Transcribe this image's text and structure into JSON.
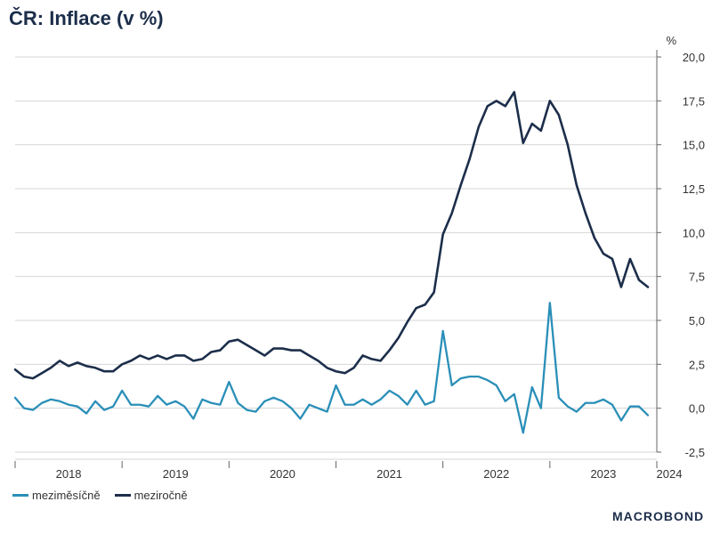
{
  "chart_data": {
    "type": "line",
    "title": "ČR: Inflace (v %)",
    "ylabel": "%",
    "ylim": [
      -2.5,
      20.0
    ],
    "yticks": [
      -2.5,
      0.0,
      2.5,
      5.0,
      7.5,
      10.0,
      12.5,
      15.0,
      17.5,
      20.0
    ],
    "ytick_labels": [
      "-2,5",
      "0,0",
      "2,5",
      "5,0",
      "7,5",
      "10,0",
      "12,5",
      "15,0",
      "17,5",
      "20,0"
    ],
    "xlim": [
      "2018-01",
      "2024-01"
    ],
    "x_labels": [
      "2018",
      "2019",
      "2020",
      "2021",
      "2022",
      "2023",
      "2024"
    ],
    "grid": true,
    "legend": "bottom-left",
    "x": [
      "2018-01",
      "2018-02",
      "2018-03",
      "2018-04",
      "2018-05",
      "2018-06",
      "2018-07",
      "2018-08",
      "2018-09",
      "2018-10",
      "2018-11",
      "2018-12",
      "2019-01",
      "2019-02",
      "2019-03",
      "2019-04",
      "2019-05",
      "2019-06",
      "2019-07",
      "2019-08",
      "2019-09",
      "2019-10",
      "2019-11",
      "2019-12",
      "2020-01",
      "2020-02",
      "2020-03",
      "2020-04",
      "2020-05",
      "2020-06",
      "2020-07",
      "2020-08",
      "2020-09",
      "2020-10",
      "2020-11",
      "2020-12",
      "2021-01",
      "2021-02",
      "2021-03",
      "2021-04",
      "2021-05",
      "2021-06",
      "2021-07",
      "2021-08",
      "2021-09",
      "2021-10",
      "2021-11",
      "2021-12",
      "2022-01",
      "2022-02",
      "2022-03",
      "2022-04",
      "2022-05",
      "2022-06",
      "2022-07",
      "2022-08",
      "2022-09",
      "2022-10",
      "2022-11",
      "2022-12",
      "2023-01",
      "2023-02",
      "2023-03",
      "2023-04",
      "2023-05",
      "2023-06",
      "2023-07",
      "2023-08",
      "2023-09",
      "2023-10",
      "2023-11",
      "2023-12"
    ],
    "series": [
      {
        "name": "meziměsíčně",
        "color": "#2a8fb8",
        "values": [
          0.6,
          0.0,
          -0.1,
          0.3,
          0.5,
          0.4,
          0.2,
          0.1,
          -0.3,
          0.4,
          -0.1,
          0.1,
          1.0,
          0.2,
          0.2,
          0.1,
          0.7,
          0.2,
          0.4,
          0.1,
          -0.6,
          0.5,
          0.3,
          0.2,
          1.5,
          0.3,
          -0.1,
          -0.2,
          0.4,
          0.6,
          0.4,
          0.0,
          -0.6,
          0.2,
          0.0,
          -0.2,
          1.3,
          0.2,
          0.2,
          0.5,
          0.2,
          0.5,
          1.0,
          0.7,
          0.2,
          1.0,
          0.2,
          0.4,
          4.4,
          1.3,
          1.7,
          1.8,
          1.8,
          1.6,
          1.3,
          0.4,
          0.8,
          -1.4,
          1.2,
          0.0,
          6.0,
          0.6,
          0.1,
          -0.2,
          0.3,
          0.3,
          0.5,
          0.2,
          -0.7,
          0.1,
          0.1,
          -0.4
        ]
      },
      {
        "name": "meziročně",
        "color": "#1c2e4a",
        "values": [
          2.2,
          1.8,
          1.7,
          2.0,
          2.3,
          2.7,
          2.4,
          2.6,
          2.4,
          2.3,
          2.1,
          2.1,
          2.5,
          2.7,
          3.0,
          2.8,
          3.0,
          2.8,
          3.0,
          3.0,
          2.7,
          2.8,
          3.2,
          3.3,
          3.8,
          3.9,
          3.6,
          3.3,
          3.0,
          3.4,
          3.4,
          3.3,
          3.3,
          3.0,
          2.7,
          2.3,
          2.1,
          2.0,
          2.3,
          3.0,
          2.8,
          2.7,
          3.3,
          4.0,
          4.9,
          5.7,
          5.9,
          6.6,
          9.9,
          11.1,
          12.7,
          14.2,
          16.0,
          17.2,
          17.5,
          17.2,
          18.0,
          15.1,
          16.2,
          15.8,
          17.5,
          16.7,
          15.0,
          12.7,
          11.1,
          9.7,
          8.8,
          8.5,
          6.9,
          8.5,
          7.3,
          6.9
        ]
      }
    ]
  },
  "branding": {
    "logo": "MACROBOND"
  }
}
